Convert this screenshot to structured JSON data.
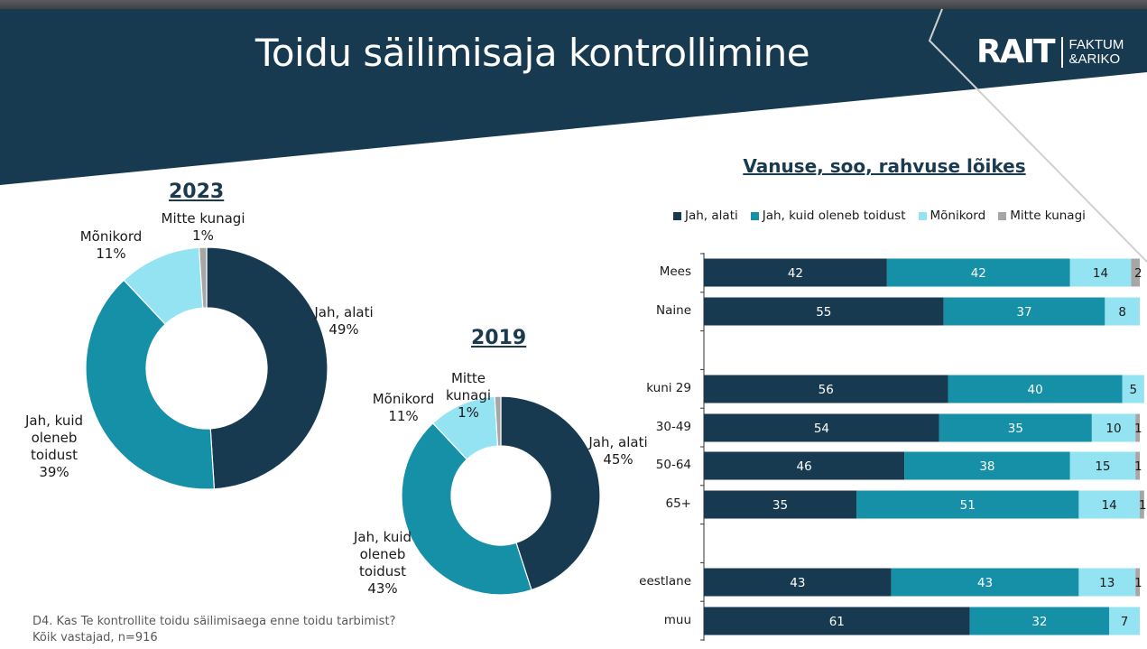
{
  "header": {
    "title": "Toidu säilimisaja kontrollimine",
    "logo_main": "RAIT",
    "logo_sub_line1": "FAKTUM",
    "logo_sub_line2": "&ARIKO"
  },
  "colors": {
    "banner": "#173a50",
    "jah_alati": "#173a50",
    "jah_kuid": "#1590a6",
    "monikord": "#93e3f2",
    "mitte_kunagi": "#a6a6a6"
  },
  "chart_data": [
    {
      "type": "pie",
      "variant": "donut",
      "title": "2023",
      "categories": [
        "Jah, alati",
        "Jah, kuid oleneb toidust",
        "Mõnikord",
        "Mitte kunagi"
      ],
      "values": [
        49,
        39,
        11,
        1
      ],
      "unit": "%",
      "labels": [
        {
          "lines": [
            "Jah, alati",
            "49%"
          ]
        },
        {
          "lines": [
            "Jah, kuid",
            "oleneb",
            "toidust",
            "39%"
          ]
        },
        {
          "lines": [
            "Mõnikord",
            "11%"
          ]
        },
        {
          "lines": [
            "Mitte kunagi",
            "1%"
          ]
        }
      ]
    },
    {
      "type": "pie",
      "variant": "donut",
      "title": "2019",
      "categories": [
        "Jah, alati",
        "Jah, kuid oleneb toidust",
        "Mõnikord",
        "Mitte kunagi"
      ],
      "values": [
        45,
        43,
        11,
        1
      ],
      "unit": "%",
      "labels": [
        {
          "lines": [
            "Jah, alati",
            "45%"
          ]
        },
        {
          "lines": [
            "Jah, kuid",
            "oleneb",
            "toidust",
            "43%"
          ]
        },
        {
          "lines": [
            "Mõnikord",
            "11%"
          ]
        },
        {
          "lines": [
            "Mitte",
            "kunagi",
            "1%"
          ]
        }
      ]
    },
    {
      "type": "bar",
      "orientation": "horizontal",
      "stacked": "100%",
      "title": "Vanuse, soo, rahvuse lõikes",
      "legend_position": "top",
      "series_names": [
        "Jah, alati",
        "Jah, kuid oleneb toidust",
        "Mõnikord",
        "Mitte kunagi"
      ],
      "categories": [
        "Mees",
        "Naine",
        "kuni 29",
        "30-49",
        "50-64",
        "65+",
        "eestlane",
        "muu"
      ],
      "groups": [
        [
          "Mees",
          "Naine"
        ],
        [
          "kuni 29",
          "30-49",
          "50-64",
          "65+"
        ],
        [
          "eestlane",
          "muu"
        ]
      ],
      "series": [
        {
          "name": "Jah, alati",
          "values": [
            42,
            55,
            56,
            54,
            46,
            35,
            43,
            61
          ]
        },
        {
          "name": "Jah, kuid oleneb toidust",
          "values": [
            42,
            37,
            40,
            35,
            38,
            51,
            43,
            32
          ]
        },
        {
          "name": "Mõnikord",
          "values": [
            14,
            8,
            5,
            10,
            15,
            14,
            13,
            7
          ]
        },
        {
          "name": "Mitte kunagi",
          "values": [
            2,
            0,
            0,
            1,
            1,
            1,
            1,
            0
          ]
        }
      ],
      "xlim": [
        0,
        100
      ]
    }
  ],
  "footnote": {
    "line1": "D4. Kas Te kontrollite toidu säilimisaega enne toidu tarbimist?",
    "line2": "Kõik vastajad, n=916"
  }
}
